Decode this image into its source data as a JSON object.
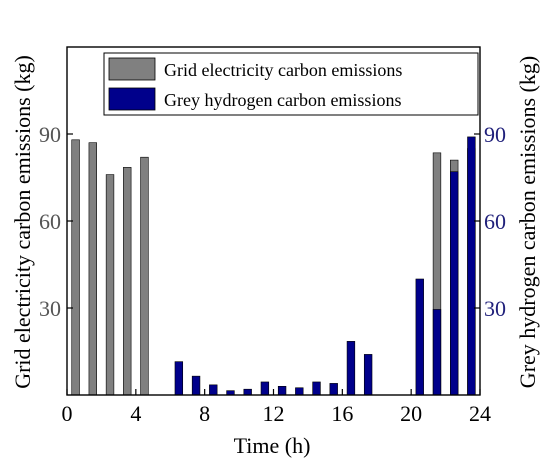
{
  "chart_data": {
    "type": "bar",
    "xlabel": "Time (h)",
    "ylabel_left": "Grid electricity carbon emissions (kg)",
    "ylabel_right": "Grey hydrogen carbon emissions (kg)",
    "xlim": [
      0,
      24
    ],
    "ylim_left": [
      0,
      120
    ],
    "ylim_right": [
      0,
      120
    ],
    "x_ticks": [
      "0",
      "4",
      "8",
      "12",
      "16",
      "20",
      "24"
    ],
    "y_ticks_left": [
      "30",
      "60",
      "90"
    ],
    "y_ticks_right": [
      "30",
      "60",
      "90"
    ],
    "legend_position": "top-right",
    "colors": {
      "grid": "#808080",
      "hydrogen": "#00008b",
      "right_axis": "#1f1f7a",
      "left_axis": "#555555"
    },
    "series": [
      {
        "name": "Grid electricity carbon emissions",
        "axis": "left",
        "color": "#808080",
        "x": [
          1,
          2,
          3,
          4,
          5,
          22,
          23,
          24
        ],
        "values": [
          88,
          87,
          76,
          78.5,
          82,
          83.5,
          81,
          85
        ]
      },
      {
        "name": "Grey hydrogen carbon emissions",
        "axis": "right",
        "color": "#00008b",
        "x": [
          7,
          8,
          9,
          10,
          11,
          12,
          13,
          14,
          15,
          16,
          17,
          18,
          21,
          22,
          23,
          24
        ],
        "values": [
          11.5,
          6.5,
          3.5,
          1.5,
          2,
          4.5,
          3,
          2.5,
          4.5,
          4,
          18.5,
          14,
          40,
          29.5,
          77,
          89
        ]
      }
    ]
  }
}
